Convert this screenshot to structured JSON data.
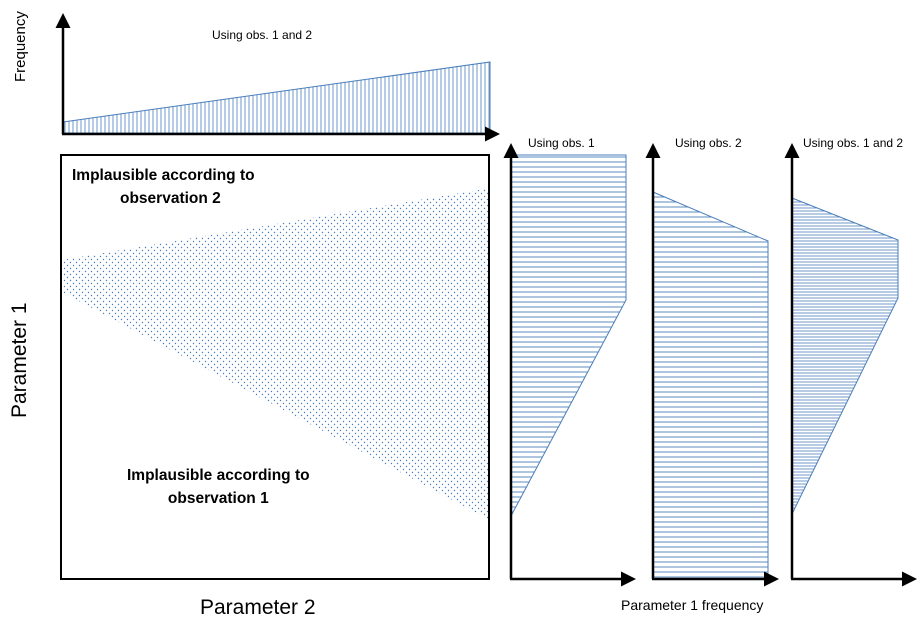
{
  "top_histogram": {
    "ylabel": "Frequency",
    "caption": "Using obs. 1 and 2"
  },
  "main_panel": {
    "xlabel": "Parameter 2",
    "ylabel": "Parameter 1",
    "region_top_label_line1": "Implausible according to",
    "region_top_label_line2": "observation 2",
    "region_bottom_label_line1": "Implausible according to",
    "region_bottom_label_line2": "observation 1"
  },
  "side_histograms": {
    "obs1_caption": "Using obs. 1",
    "obs2_caption": "Using obs. 2",
    "both_caption": "Using obs. 1 and 2",
    "xlabel": "Parameter 1 frequency"
  },
  "colors": {
    "hatch": "#4a7ebb",
    "axis": "#000000"
  }
}
